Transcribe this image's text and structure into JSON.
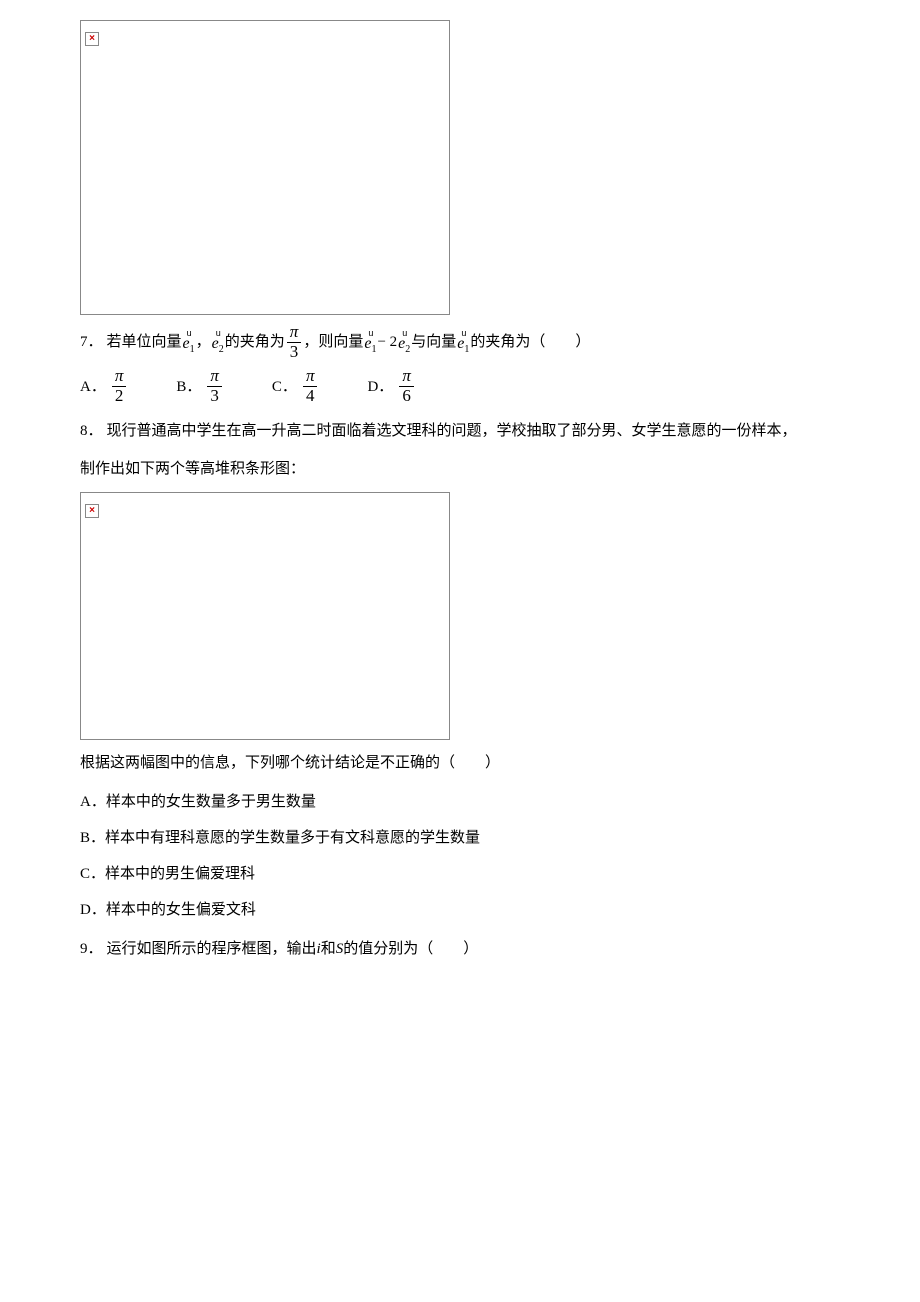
{
  "image_placeholder": {
    "broken_symbol": "×",
    "border_color": "#888888",
    "symbol_color": "#cc0000"
  },
  "q7": {
    "number": "7．",
    "text_part1": "若单位向量",
    "vec1_arrow": "u",
    "vec1": "e",
    "vec1_sub": "1",
    "comma1": "，",
    "vec2_arrow": "u",
    "vec2": "e",
    "vec2_sub": "2",
    "text_part2": "的夹角为",
    "frac1_num": "π",
    "frac1_den": "3",
    "comma2": "，",
    "text_part3": "则向量",
    "vec3_arrow": "u",
    "vec3": "e",
    "vec3_sub": "1",
    "minus": " − 2",
    "vec4_arrow": "u",
    "vec4": "e",
    "vec4_sub": "2",
    "text_part4": "与向量",
    "vec5_arrow": "u",
    "vec5": "e",
    "vec5_sub": "1",
    "text_part5": "的夹角为（　　）",
    "options": {
      "A_label": "A．",
      "A_num": "π",
      "A_den": "2",
      "B_label": "B．",
      "B_num": "π",
      "B_den": "3",
      "C_label": "C．",
      "C_num": "π",
      "C_den": "4",
      "D_label": "D．",
      "D_num": "π",
      "D_den": "6"
    }
  },
  "q8": {
    "number": "8．",
    "text1": "现行普通高中学生在高一升高二时面临着选文理科的问题，学校抽取了部分男、女学生意愿的一份样本，",
    "text2": "制作出如下两个等高堆积条形图：",
    "text3": "根据这两幅图中的信息，下列哪个统计结论是不正确的（　　）",
    "dot": "．",
    "options": {
      "A": "A．样本中的女生数量多于男生数量",
      "B": "B．样本中有理科意愿的学生数量多于有文科意愿的学生数量",
      "C": "C．样本中的男生偏爱理科",
      "D": "D．样本中的女生偏爱文科"
    }
  },
  "q9": {
    "number": "9．",
    "text_part1": "运行如图所示的程序框图，输出",
    "var_i": "i",
    "text_part2": "和",
    "var_S": "S",
    "text_part3": "的值分别为（　　）"
  }
}
